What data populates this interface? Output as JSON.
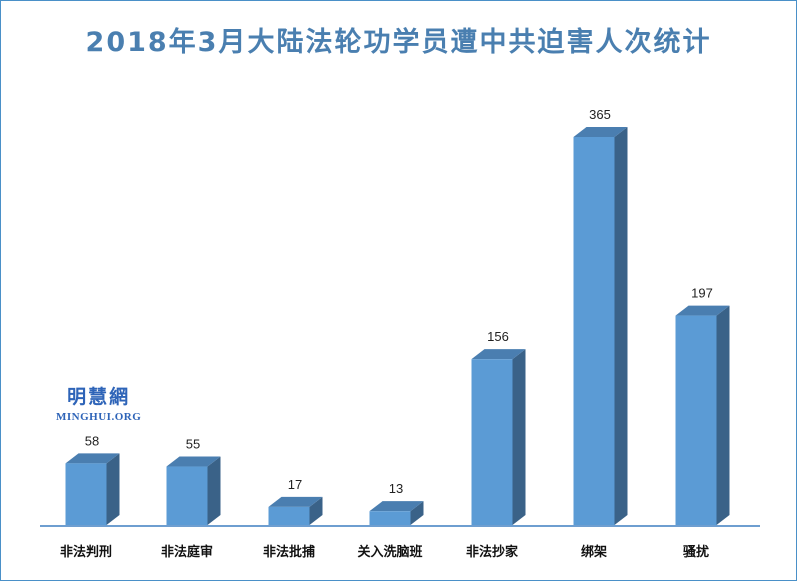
{
  "chart_data": {
    "type": "bar",
    "title": "2018年3月大陆法轮功学员遭中共迫害人次统计",
    "categories": [
      "非法判刑",
      "非法庭审",
      "非法批捕",
      "关入洗脑班",
      "非法抄家",
      "绑架",
      "骚扰"
    ],
    "values": [
      58,
      55,
      17,
      13,
      156,
      365,
      197
    ],
    "data_labels": [
      "58",
      "55",
      "17",
      "13",
      "156",
      "365",
      "197"
    ],
    "xlabel": "",
    "ylabel": "",
    "ylim": [
      0,
      365
    ],
    "grid": false,
    "legend": "none",
    "bar_3d": true,
    "colors": {
      "bar_front": "#5b9bd5",
      "bar_side": "#3a6288",
      "bar_top": "#4a7eb0",
      "baseline": "#3e7ec0",
      "title": "#4a7fb0",
      "border": "#4a90c8"
    }
  },
  "watermark": {
    "chinese": "明慧網",
    "english": "MINGHUI.ORG"
  }
}
